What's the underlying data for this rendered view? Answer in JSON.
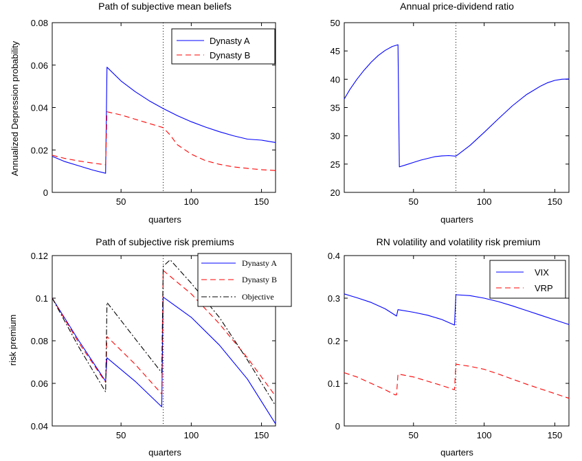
{
  "figure": {
    "panel_count": 4
  },
  "chart_data": [
    {
      "type": "line",
      "title": "Path of subjective mean beliefs",
      "xlabel": "quarters",
      "ylabel": "Annualized Depression probability",
      "xlim": [
        1,
        160
      ],
      "ylim": [
        0,
        0.08
      ],
      "xticks": [
        50,
        100,
        150
      ],
      "xtick_labels": [
        "50",
        "100",
        "150"
      ],
      "yticks": [
        0,
        0.02,
        0.04,
        0.06,
        0.08
      ],
      "ytick_labels": [
        "0",
        "0.02",
        "0.04",
        "0.06",
        "0.08"
      ],
      "vline_x": 80,
      "legend": {
        "position": "top-right"
      },
      "series": [
        {
          "name": "Dynasty A",
          "color": "#0000ff",
          "dash": "solid",
          "x": [
            1,
            10,
            20,
            30,
            39,
            40,
            50,
            60,
            70,
            80,
            90,
            100,
            110,
            120,
            130,
            140,
            150,
            160
          ],
          "y": [
            0.017,
            0.0145,
            0.0125,
            0.0105,
            0.009,
            0.059,
            0.0525,
            0.0475,
            0.0432,
            0.0395,
            0.0362,
            0.0333,
            0.0308,
            0.0286,
            0.0267,
            0.0251,
            0.0246,
            0.0235
          ]
        },
        {
          "name": "Dynasty B",
          "color": "#ff0000",
          "dash": "dashed",
          "x": [
            1,
            10,
            20,
            30,
            39,
            40,
            50,
            60,
            70,
            80,
            85,
            90,
            100,
            110,
            120,
            130,
            140,
            150,
            160
          ],
          "y": [
            0.0175,
            0.016,
            0.0148,
            0.0138,
            0.013,
            0.038,
            0.0365,
            0.0345,
            0.0325,
            0.0305,
            0.027,
            0.0225,
            0.018,
            0.015,
            0.0132,
            0.012,
            0.0113,
            0.0107,
            0.0103
          ]
        }
      ]
    },
    {
      "type": "line",
      "title": "Annual price-dividend ratio",
      "xlabel": "quarters",
      "ylabel": "",
      "xlim": [
        1,
        160
      ],
      "ylim": [
        20,
        50
      ],
      "xticks": [
        50,
        100,
        150
      ],
      "xtick_labels": [
        "50",
        "100",
        "150"
      ],
      "yticks": [
        20,
        25,
        30,
        35,
        40,
        45,
        50
      ],
      "ytick_labels": [
        "20",
        "25",
        "30",
        "35",
        "40",
        "45",
        "50"
      ],
      "vline_x": 80,
      "series": [
        {
          "color": "#0000ff",
          "dash": "solid",
          "x": [
            1,
            5,
            10,
            15,
            20,
            25,
            30,
            35,
            39,
            40,
            45,
            50,
            55,
            60,
            65,
            70,
            75,
            80,
            90,
            100,
            110,
            120,
            130,
            140,
            145,
            150,
            155,
            160
          ],
          "y": [
            36.5,
            38.2,
            40.0,
            41.6,
            43.0,
            44.2,
            45.1,
            45.8,
            46.1,
            24.5,
            24.9,
            25.3,
            25.7,
            26.0,
            26.3,
            26.45,
            26.5,
            26.4,
            28.3,
            30.6,
            33.0,
            35.3,
            37.3,
            38.8,
            39.4,
            39.8,
            40.0,
            40.05
          ]
        }
      ]
    },
    {
      "type": "line",
      "title": "Path of subjective risk premiums",
      "xlabel": "quarters",
      "ylabel": "risk premium",
      "xlim": [
        1,
        160
      ],
      "ylim": [
        0.04,
        0.12
      ],
      "xticks": [
        50,
        100,
        150
      ],
      "xtick_labels": [
        "50",
        "100",
        "150"
      ],
      "yticks": [
        0.04,
        0.06,
        0.08,
        0.1,
        0.12
      ],
      "ytick_labels": [
        "0.04",
        "0.06",
        "0.08",
        "0.1",
        "0.12"
      ],
      "vline_x": 80,
      "legend": {
        "position": "top-right"
      },
      "series": [
        {
          "name": "Dynasty A",
          "color": "#0000ff",
          "dash": "solid",
          "x": [
            1,
            20,
            39,
            40,
            60,
            79,
            80,
            100,
            120,
            140,
            160
          ],
          "y": [
            0.1,
            0.08,
            0.061,
            0.072,
            0.061,
            0.049,
            0.1005,
            0.091,
            0.078,
            0.062,
            0.041
          ]
        },
        {
          "name": "Dynasty B",
          "color": "#ff0000",
          "dash": "dashed",
          "x": [
            1,
            20,
            39,
            40,
            60,
            79,
            80,
            100,
            120,
            140,
            160
          ],
          "y": [
            0.1,
            0.079,
            0.0605,
            0.082,
            0.069,
            0.055,
            0.113,
            0.102,
            0.088,
            0.072,
            0.054
          ]
        },
        {
          "name": "Objective",
          "color": "#000000",
          "dash": "dashdot",
          "x": [
            1,
            20,
            39,
            40,
            60,
            79,
            80,
            85,
            100,
            120,
            140,
            160
          ],
          "y": [
            0.1,
            0.077,
            0.056,
            0.098,
            0.081,
            0.065,
            0.115,
            0.118,
            0.107,
            0.091,
            0.071,
            0.0495
          ]
        }
      ]
    },
    {
      "type": "line",
      "title": "RN volatility and volatility risk premium",
      "xlabel": "quarters",
      "ylabel": "",
      "xlim": [
        1,
        160
      ],
      "ylim": [
        0,
        0.4
      ],
      "xticks": [
        50,
        100,
        150
      ],
      "xtick_labels": [
        "50",
        "100",
        "150"
      ],
      "yticks": [
        0,
        0.1,
        0.2,
        0.3,
        0.4
      ],
      "ytick_labels": [
        "0",
        "0.1",
        "0.2",
        "0.3",
        "0.4"
      ],
      "vline_x": 80,
      "legend": {
        "position": "top-right"
      },
      "series": [
        {
          "name": "VIX",
          "color": "#0000ff",
          "dash": "solid",
          "x": [
            1,
            10,
            20,
            30,
            38,
            39,
            50,
            60,
            70,
            79,
            80,
            90,
            100,
            110,
            120,
            130,
            140,
            150,
            160
          ],
          "y": [
            0.31,
            0.301,
            0.29,
            0.275,
            0.258,
            0.273,
            0.267,
            0.26,
            0.25,
            0.237,
            0.308,
            0.306,
            0.3,
            0.292,
            0.282,
            0.271,
            0.26,
            0.249,
            0.238
          ]
        },
        {
          "name": "VRP",
          "color": "#ff0000",
          "dash": "dashed",
          "x": [
            1,
            10,
            20,
            30,
            37,
            38,
            39,
            50,
            60,
            70,
            79,
            80,
            90,
            100,
            110,
            120,
            130,
            140,
            150,
            160
          ],
          "y": [
            0.125,
            0.115,
            0.1,
            0.085,
            0.073,
            0.073,
            0.122,
            0.115,
            0.105,
            0.095,
            0.085,
            0.145,
            0.14,
            0.133,
            0.122,
            0.11,
            0.098,
            0.087,
            0.076,
            0.065
          ]
        }
      ]
    }
  ]
}
